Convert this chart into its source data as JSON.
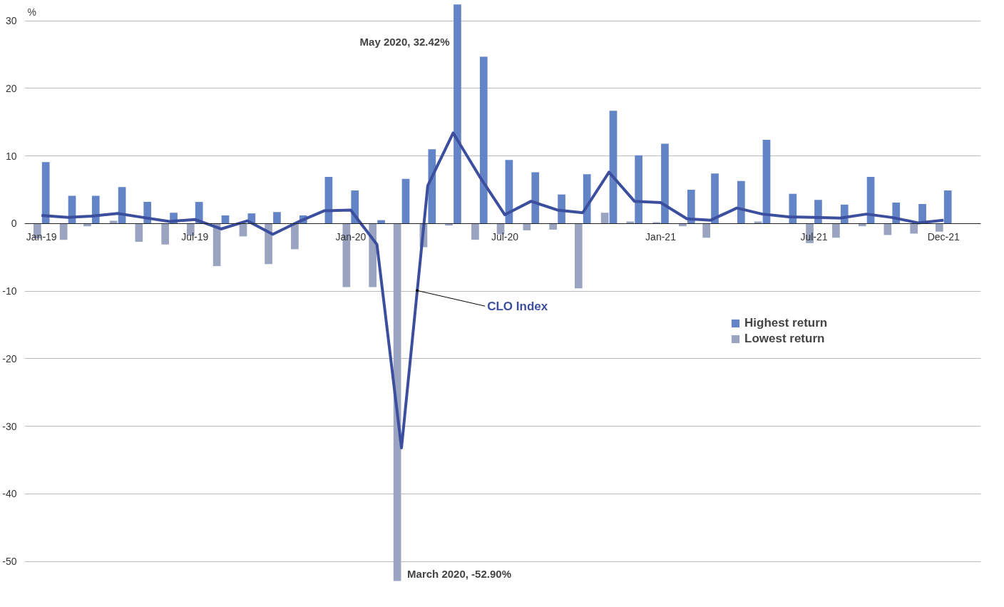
{
  "chart_data": {
    "type": "bar",
    "ylabel": "%",
    "x": [
      "2019-01",
      "2019-02",
      "2019-03",
      "2019-04",
      "2019-05",
      "2019-06",
      "2019-07",
      "2019-08",
      "2019-09",
      "2019-10",
      "2019-11",
      "2019-12",
      "2020-01",
      "2020-02",
      "2020-03",
      "2020-04",
      "2020-05",
      "2020-06",
      "2020-07",
      "2020-08",
      "2020-09",
      "2020-10",
      "2020-11",
      "2020-12",
      "2021-01",
      "2021-02",
      "2021-03",
      "2021-04",
      "2021-05",
      "2021-06",
      "2021-07",
      "2021-08",
      "2021-09",
      "2021-10",
      "2021-11",
      "2021-12"
    ],
    "series": [
      {
        "name": "Highest return",
        "color": "#6384c6",
        "values": [
          9.1,
          4.1,
          4.1,
          5.4,
          3.2,
          1.6,
          3.2,
          1.2,
          1.5,
          1.7,
          1.2,
          6.9,
          4.9,
          0.5,
          6.6,
          11.0,
          32.42,
          24.7,
          9.4,
          7.6,
          4.3,
          7.3,
          16.7,
          10.1,
          11.8,
          5.0,
          7.4,
          6.3,
          12.4,
          4.4,
          3.5,
          2.8,
          6.9,
          3.1,
          2.9,
          4.9
        ]
      },
      {
        "name": "Lowest return",
        "color": "#9aa3c0",
        "values": [
          -2.2,
          -2.4,
          -0.4,
          0.4,
          -2.7,
          -3.1,
          -1.8,
          -6.3,
          -1.9,
          -6.0,
          -3.8,
          null,
          -9.4,
          -9.4,
          -52.9,
          -3.5,
          -0.3,
          -2.4,
          -1.6,
          -1.0,
          -0.9,
          -9.6,
          1.6,
          0.3,
          0.2,
          -0.4,
          -2.1,
          null,
          0.3,
          null,
          -2.9,
          -2.1,
          -0.4,
          -1.7,
          -1.5,
          -1.2
        ]
      },
      {
        "name": "CLO Index",
        "type": "line",
        "color": "#3b4f9e",
        "values": [
          1.2,
          0.9,
          1.1,
          1.5,
          0.9,
          0.3,
          0.6,
          -0.8,
          0.4,
          -1.6,
          0.3,
          1.9,
          2.0,
          -3.1,
          -33.2,
          5.6,
          13.4,
          7.0,
          1.3,
          3.3,
          2.0,
          1.6,
          7.6,
          3.3,
          3.1,
          0.7,
          0.5,
          2.3,
          1.4,
          1.0,
          0.9,
          0.8,
          1.4,
          0.9,
          0.1,
          0.5
        ]
      }
    ],
    "xlim": [
      "2018-12-12",
      "2022-01-14"
    ],
    "xticks": [
      {
        "value": "2019-01",
        "label": "Jan-19"
      },
      {
        "value": "2019-07",
        "label": "Jul-19"
      },
      {
        "value": "2020-01",
        "label": "Jan-20"
      },
      {
        "value": "2020-07",
        "label": "Jul-20"
      },
      {
        "value": "2021-01",
        "label": "Jan-21"
      },
      {
        "value": "2021-07",
        "label": "Jul-21"
      },
      {
        "value": "2021-12",
        "label": "Dec-21"
      }
    ],
    "ylim": [
      -53,
      32.5
    ],
    "yticks": [
      -50,
      -40,
      -30,
      -20,
      -10,
      0,
      10,
      20,
      30
    ],
    "grid": "y",
    "legend": "right",
    "annotations": [
      {
        "text": "May 2020, 32.42%",
        "x": "2020-05",
        "y": 32.42
      },
      {
        "text": "March 2020, -52.90%",
        "x": "2020-03",
        "y": -52.9
      }
    ]
  }
}
